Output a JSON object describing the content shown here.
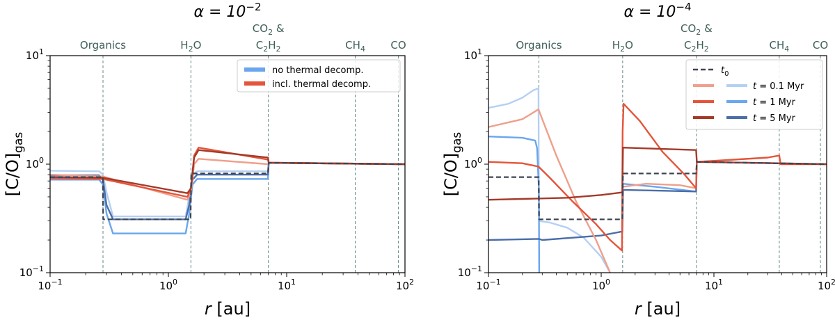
{
  "chart_data": [
    {
      "type": "line",
      "title": "α = 10",
      "title_exp": "−2",
      "xlabel_italic": "r",
      "xlabel_rest": " [au]",
      "ylabel_main": "[C/O]",
      "ylabel_sub": "gas",
      "xscale": "log",
      "yscale": "log",
      "xlim": [
        0.1,
        100
      ],
      "ylim": [
        0.1,
        10
      ],
      "xtick_base": "10",
      "xtick_exps": [
        "−1",
        "0",
        "1",
        "2"
      ],
      "ytick_base": "10",
      "ytick_exps": [
        "−1",
        "0",
        "1"
      ],
      "snowlines": [
        {
          "r": 0.28,
          "label": "Organics"
        },
        {
          "r": 1.55,
          "label": "H2O"
        },
        {
          "r": 7.0,
          "label": "CO2 & C2H2"
        },
        {
          "r": 38,
          "label": "CH4"
        },
        {
          "r": 88,
          "label": "CO"
        }
      ],
      "legend_position": "top-right",
      "legend": [
        {
          "label": "no thermal decomp.",
          "color": "#6aa6ee"
        },
        {
          "label": "incl. thermal decomp.",
          "color": "#e4543a"
        }
      ],
      "series": [
        {
          "name": "t0",
          "color": "#3d4451",
          "dash": true,
          "x": [
            0.1,
            0.279,
            0.281,
            1.54,
            1.56,
            6.95,
            7.05,
            100
          ],
          "y": [
            0.76,
            0.76,
            0.31,
            0.31,
            0.82,
            0.82,
            1.03,
            1.0
          ]
        },
        {
          "name": "no decomp t=0.1 Myr",
          "color": "#b4d0f3",
          "x": [
            0.1,
            0.26,
            0.28,
            0.3,
            0.34,
            1.4,
            1.5,
            1.6,
            1.75,
            6.95,
            7.05,
            100
          ],
          "y": [
            0.87,
            0.86,
            0.8,
            0.55,
            0.33,
            0.33,
            0.5,
            0.8,
            0.86,
            0.86,
            1.03,
            1.0
          ]
        },
        {
          "name": "no decomp t=1 Myr",
          "color": "#6aa6ee",
          "x": [
            0.1,
            0.26,
            0.28,
            0.3,
            0.34,
            1.4,
            1.5,
            1.6,
            1.75,
            6.95,
            7.05,
            100
          ],
          "y": [
            0.72,
            0.72,
            0.65,
            0.35,
            0.23,
            0.23,
            0.35,
            0.65,
            0.73,
            0.73,
            1.03,
            1.0
          ]
        },
        {
          "name": "no decomp t=5 Myr",
          "color": "#4b6ea8",
          "x": [
            0.1,
            0.26,
            0.28,
            0.3,
            0.34,
            1.4,
            1.5,
            1.6,
            1.75,
            6.95,
            7.05,
            100
          ],
          "y": [
            0.79,
            0.79,
            0.72,
            0.42,
            0.31,
            0.31,
            0.42,
            0.72,
            0.8,
            0.8,
            1.03,
            1.0
          ]
        },
        {
          "name": "decomp t=0.1 Myr",
          "color": "#ef9f8b",
          "x": [
            0.1,
            0.28,
            1.45,
            1.55,
            1.65,
            1.8,
            6.95,
            7.05,
            100
          ],
          "y": [
            0.8,
            0.77,
            0.47,
            0.55,
            1.0,
            1.12,
            1.0,
            1.03,
            1.0
          ]
        },
        {
          "name": "decomp t=1 Myr",
          "color": "#e4543a",
          "x": [
            0.1,
            0.28,
            1.45,
            1.55,
            1.65,
            1.8,
            6.95,
            7.05,
            100
          ],
          "y": [
            0.74,
            0.73,
            0.5,
            0.6,
            1.2,
            1.42,
            1.1,
            1.03,
            1.0
          ]
        },
        {
          "name": "decomp t=5 Myr",
          "color": "#a33a28",
          "x": [
            0.1,
            0.28,
            1.45,
            1.55,
            1.65,
            1.8,
            6.95,
            7.05,
            100
          ],
          "y": [
            0.76,
            0.75,
            0.54,
            0.6,
            1.15,
            1.35,
            1.15,
            1.03,
            1.0
          ]
        }
      ]
    },
    {
      "type": "line",
      "title": "α = 10",
      "title_exp": "−4",
      "xlabel_italic": "r",
      "xlabel_rest": " [au]",
      "ylabel_main": "[C/O]",
      "ylabel_sub": "gas",
      "xscale": "log",
      "yscale": "log",
      "xlim": [
        0.1,
        100
      ],
      "ylim": [
        0.1,
        10
      ],
      "xtick_base": "10",
      "xtick_exps": [
        "−1",
        "0",
        "1",
        "2"
      ],
      "ytick_base": "10",
      "ytick_exps": [
        "−1",
        "0",
        "1"
      ],
      "snowlines": [
        {
          "r": 0.28,
          "label": "Organics"
        },
        {
          "r": 1.55,
          "label": "H2O"
        },
        {
          "r": 7.0,
          "label": "CO2 & C2H2"
        },
        {
          "r": 38,
          "label": "CH4"
        },
        {
          "r": 88,
          "label": "CO"
        }
      ],
      "legend_position": "top-right",
      "legend": [
        {
          "label": "t0",
          "colors": [
            "#3d4451"
          ],
          "dash": true
        },
        {
          "label": "t = 0.1 Myr",
          "colors": [
            "#ef9f8b",
            "#b4d0f3"
          ]
        },
        {
          "label": "t = 1 Myr",
          "colors": [
            "#e4543a",
            "#6aa6ee"
          ]
        },
        {
          "label": "t = 5 Myr",
          "colors": [
            "#a33a28",
            "#4b6ea8"
          ]
        }
      ],
      "series": [
        {
          "name": "t0",
          "color": "#3d4451",
          "dash": true,
          "x": [
            0.1,
            0.279,
            0.281,
            1.54,
            1.56,
            6.95,
            7.05,
            100
          ],
          "y": [
            0.76,
            0.76,
            0.31,
            0.31,
            0.82,
            0.82,
            1.05,
            1.0
          ]
        },
        {
          "name": "no decomp t=0.1 Myr",
          "color": "#b4d0f3",
          "x": [
            0.1,
            0.15,
            0.2,
            0.25,
            0.278,
            0.28,
            0.282,
            0.35,
            0.5,
            0.7,
            1.0,
            1.2
          ],
          "y": [
            3.3,
            3.6,
            4.1,
            4.8,
            5.0,
            0.5,
            0.3,
            0.29,
            0.26,
            0.21,
            0.14,
            0.1
          ]
        },
        {
          "name": "no decomp t=1 Myr",
          "color": "#6aa6ee",
          "x": [
            0.1,
            0.2,
            0.26,
            0.27,
            0.28,
            0.281,
            0.282
          ],
          "y": [
            1.8,
            1.75,
            1.65,
            1.4,
            0.6,
            0.2,
            0.1
          ]
        },
        {
          "name": "no decomp t=1 Myr (outer)",
          "color": "#6aa6ee",
          "x": [
            1.56,
            3.0,
            6.9
          ],
          "y": [
            0.66,
            0.62,
            0.56
          ]
        },
        {
          "name": "no decomp t=5 Myr",
          "color": "#4b6ea8",
          "x": [
            0.1,
            0.28,
            0.3,
            1.0,
            1.54,
            1.56,
            6.95,
            7.05,
            100
          ],
          "y": [
            0.2,
            0.205,
            0.2,
            0.22,
            0.24,
            0.58,
            0.56,
            1.05,
            1.0
          ]
        },
        {
          "name": "decomp t=0.1 Myr",
          "color": "#ef9f8b",
          "x": [
            0.1,
            0.2,
            0.278,
            0.3,
            0.4,
            0.6,
            0.9,
            1.2
          ],
          "y": [
            2.2,
            2.6,
            3.2,
            2.6,
            1.2,
            0.45,
            0.2,
            0.1
          ]
        },
        {
          "name": "decomp t=0.1 Myr (outer)",
          "color": "#ef9f8b",
          "x": [
            1.56,
            2.5,
            5.0,
            6.95
          ],
          "y": [
            0.62,
            0.66,
            0.64,
            0.6
          ]
        },
        {
          "name": "decomp t=1 Myr",
          "color": "#e4543a",
          "x": [
            0.1,
            0.2,
            0.278,
            0.35,
            0.55,
            0.9,
            1.2,
            1.53,
            1.55,
            1.58,
            2.2,
            3.5,
            5.5,
            6.95,
            7.05,
            15,
            30,
            38,
            39,
            100
          ],
          "y": [
            1.05,
            1.02,
            0.95,
            0.75,
            0.46,
            0.28,
            0.2,
            0.16,
            2.0,
            3.6,
            2.5,
            1.3,
            0.8,
            0.6,
            1.05,
            1.1,
            1.15,
            1.2,
            1.0,
            1.0
          ]
        },
        {
          "name": "decomp t=5 Myr",
          "color": "#a33a28",
          "x": [
            0.1,
            0.5,
            1.0,
            1.54,
            1.56,
            6.95,
            7.05,
            100
          ],
          "y": [
            0.47,
            0.49,
            0.52,
            0.55,
            1.42,
            1.35,
            1.05,
            1.0
          ]
        }
      ]
    }
  ]
}
